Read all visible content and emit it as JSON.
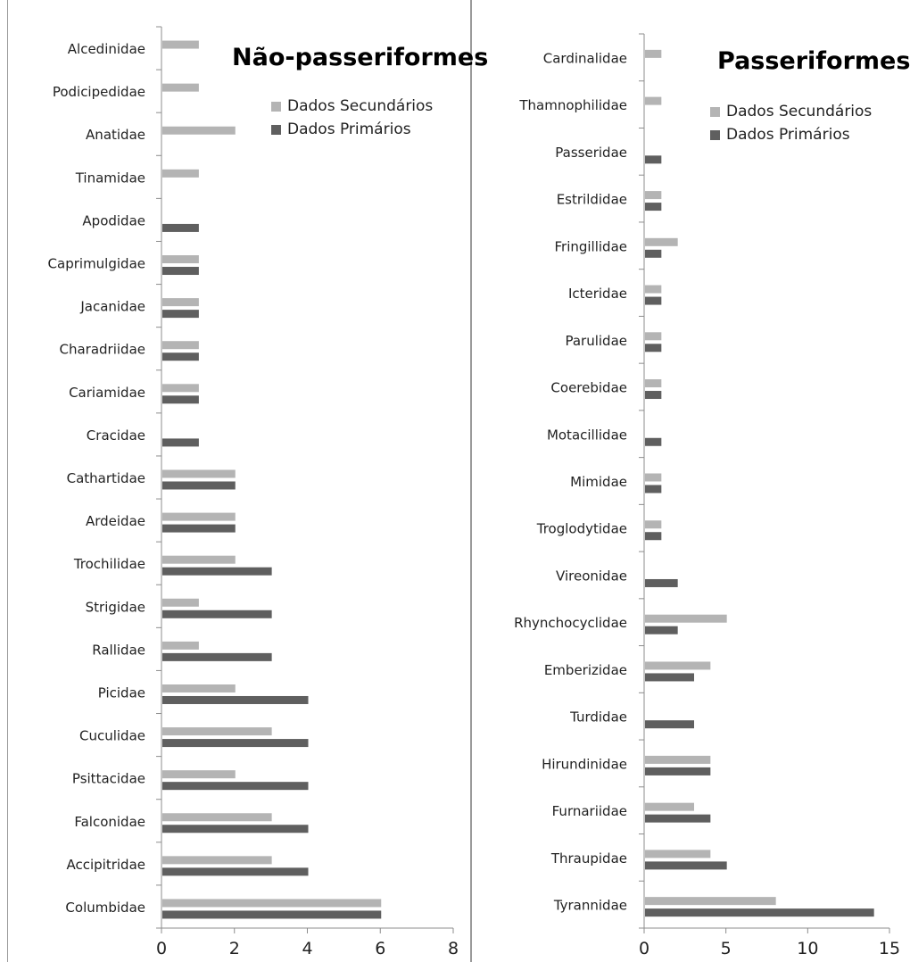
{
  "colors": {
    "secondary": "#b4b4b4",
    "primary": "#5f5f5f",
    "axis": "#8c8c8c",
    "frame": "#9a9a9a"
  },
  "chart_data": [
    {
      "type": "bar",
      "orientation": "horizontal",
      "title": "Não-passeriformes",
      "legend_position": "top-right",
      "grid": false,
      "xlim": [
        0,
        8
      ],
      "xticks": [
        0,
        2,
        4,
        6,
        8
      ],
      "categories": [
        "Alcedinidae",
        "Podicipedidae",
        "Anatidae",
        "Tinamidae",
        "Apodidae",
        "Caprimulgidae",
        "Jacanidae",
        "Charadriidae",
        "Cariamidae",
        "Cracidae",
        "Cathartidae",
        "Ardeidae",
        "Trochilidae",
        "Strigidae",
        "Rallidae",
        "Picidae",
        "Cuculidae",
        "Psittacidae",
        "Falconidae",
        "Accipitridae",
        "Columbidae"
      ],
      "series": [
        {
          "name": "Dados Secundários",
          "values": [
            1,
            1,
            2,
            1,
            0,
            1,
            1,
            1,
            1,
            0,
            2,
            2,
            2,
            1,
            1,
            2,
            3,
            2,
            3,
            3,
            6
          ]
        },
        {
          "name": "Dados Primários",
          "values": [
            0,
            0,
            0,
            0,
            1,
            1,
            1,
            1,
            1,
            1,
            2,
            2,
            3,
            3,
            3,
            4,
            4,
            4,
            4,
            4,
            6
          ]
        }
      ]
    },
    {
      "type": "bar",
      "orientation": "horizontal",
      "title": "Passeriformes",
      "legend_position": "top-right",
      "grid": false,
      "xlim": [
        0,
        15
      ],
      "xticks": [
        0,
        5,
        10,
        15
      ],
      "categories": [
        "Cardinalidae",
        "Thamnophilidae",
        "Passeridae",
        "Estrildidae",
        "Fringillidae",
        "Icteridae",
        "Parulidae",
        "Coerebidae",
        "Motacillidae",
        "Mimidae",
        "Troglodytidae",
        "Vireonidae",
        "Rhynchocyclidae",
        "Emberizidae",
        "Turdidae",
        "Hirundinidae",
        "Furnariidae",
        "Thraupidae",
        "Tyrannidae"
      ],
      "series": [
        {
          "name": "Dados Secundários",
          "values": [
            1,
            1,
            0,
            1,
            2,
            1,
            1,
            1,
            0,
            1,
            1,
            0,
            5,
            4,
            0,
            4,
            3,
            4,
            8
          ]
        },
        {
          "name": "Dados Primários",
          "values": [
            0,
            0,
            1,
            1,
            1,
            1,
            1,
            1,
            1,
            1,
            1,
            2,
            2,
            3,
            3,
            4,
            4,
            5,
            14
          ]
        }
      ]
    }
  ]
}
